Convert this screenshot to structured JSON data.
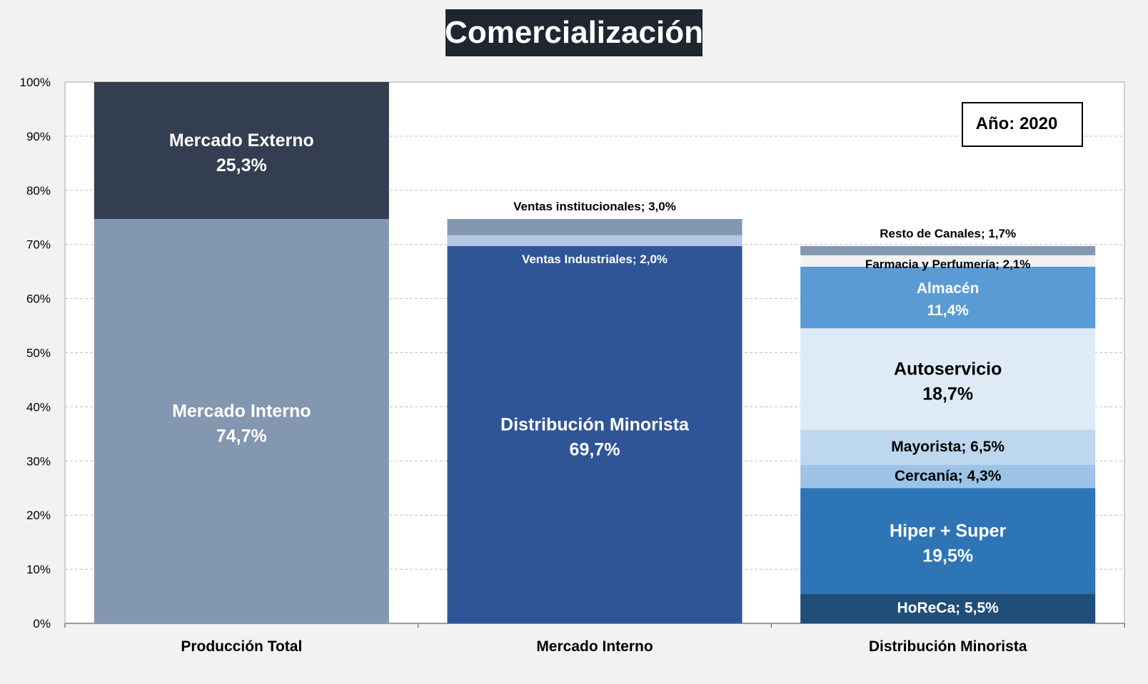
{
  "title": "Comercialización",
  "year_badge": "Año: 2020",
  "chart_data": {
    "type": "bar",
    "stacked": true,
    "ylim": [
      0,
      100
    ],
    "yticks": [
      "0%",
      "10%",
      "20%",
      "30%",
      "40%",
      "50%",
      "60%",
      "70%",
      "80%",
      "90%",
      "100%"
    ],
    "grid": true,
    "categories": [
      "Producción Total",
      "Mercado Interno",
      "Distribución Minorista"
    ],
    "segments": [
      [
        {
          "label": "Mercado Interno",
          "value": 74.7,
          "value_label": "74,7%",
          "color": "#8497b0"
        },
        {
          "label": "Mercado Externo",
          "value": 25.3,
          "value_label": "25,3%",
          "color": "#333f50"
        }
      ],
      [
        {
          "label": "Distribución Minorista",
          "value": 69.7,
          "value_label": "69,7%",
          "color": "#2f5597"
        },
        {
          "label": "Ventas Industriales",
          "value": 2.0,
          "value_label": "2,0%",
          "color": "#b4c7e7"
        },
        {
          "label": "Ventas institucionales",
          "value": 3.0,
          "value_label": "3,0%",
          "color": "#8497b0"
        }
      ],
      [
        {
          "label": "HoReCa",
          "value": 5.5,
          "value_label": "5,5%",
          "color": "#1f4e79"
        },
        {
          "label": "Hiper + Super",
          "value": 19.5,
          "value_label": "19,5%",
          "color": "#2e75b6"
        },
        {
          "label": "Cercanía",
          "value": 4.3,
          "value_label": "4,3%",
          "color": "#9dc3e6"
        },
        {
          "label": "Mayorista",
          "value": 6.5,
          "value_label": "6,5%",
          "color": "#bdd7ee"
        },
        {
          "label": "Autoservicio",
          "value": 18.7,
          "value_label": "18,7%",
          "color": "#deebf7"
        },
        {
          "label": "Almacén",
          "value": 11.4,
          "value_label": "11,4%",
          "color": "#5b9bd5"
        },
        {
          "label": "Farmacia y Perfumería",
          "value": 2.1,
          "value_label": "2,1%",
          "color": "#f2f2f2"
        },
        {
          "label": "Resto de Canales",
          "value": 1.7,
          "value_label": "1,7%",
          "color": "#8497b0"
        }
      ]
    ]
  }
}
